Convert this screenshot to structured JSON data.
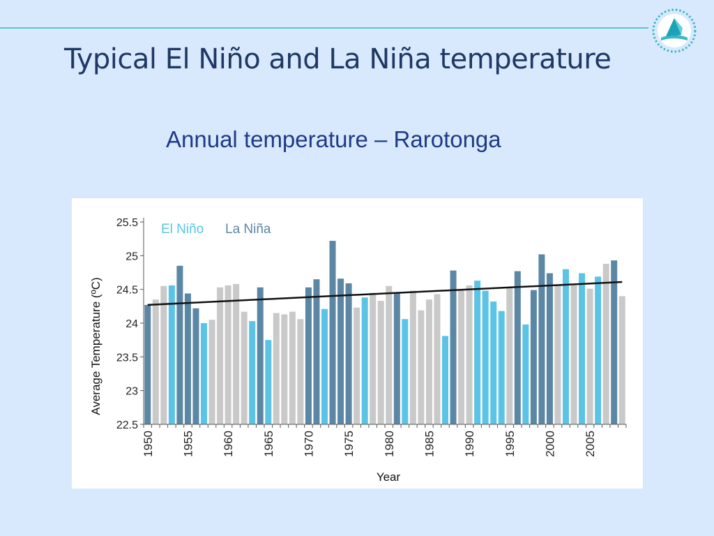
{
  "slide": {
    "title": "Typical El Niño and La Niña temperature",
    "subtitle": "Annual temperature – Rarotonga"
  },
  "logo": {
    "icon": "sail-boat-logo-icon"
  },
  "colors": {
    "background": "#d8e9fd",
    "title": "#1f3864",
    "subtitle": "#1f3a86",
    "el_nino": "#5bc4e6",
    "la_nina": "#5b87a5",
    "neutral": "#c9c9c9",
    "trend": "#111111",
    "accent_line": "#5ec4c9"
  },
  "chart_data": {
    "type": "bar",
    "title": "",
    "xlabel": "Year",
    "ylabel": "Average Temperature (ºC)",
    "ylim": [
      22.5,
      25.5
    ],
    "yticks": [
      "22.5",
      "23",
      "23.5",
      "24",
      "24.5",
      "25",
      "25.5"
    ],
    "xticks": [
      "1950",
      "1955",
      "1960",
      "1965",
      "1970",
      "1975",
      "1980",
      "1985",
      "1990",
      "1995",
      "2000",
      "2005"
    ],
    "legend": {
      "position": "top-left",
      "el_nino": "El Niño",
      "la_nina": "La Niña"
    },
    "categories": [
      1950,
      1951,
      1952,
      1953,
      1954,
      1955,
      1956,
      1957,
      1958,
      1959,
      1960,
      1961,
      1962,
      1963,
      1964,
      1965,
      1966,
      1967,
      1968,
      1969,
      1970,
      1971,
      1972,
      1973,
      1974,
      1975,
      1976,
      1977,
      1978,
      1979,
      1980,
      1981,
      1982,
      1983,
      1984,
      1985,
      1986,
      1987,
      1988,
      1989,
      1990,
      1991,
      1992,
      1993,
      1994,
      1995,
      1996,
      1997,
      1998,
      1999,
      2000,
      2001,
      2002,
      2003,
      2004,
      2005,
      2006,
      2007,
      2008,
      2009
    ],
    "values": [
      24.27,
      24.35,
      24.55,
      24.56,
      24.85,
      24.44,
      24.22,
      24.0,
      24.05,
      24.53,
      24.56,
      24.58,
      24.17,
      24.03,
      24.53,
      23.75,
      24.15,
      24.13,
      24.17,
      24.06,
      24.53,
      24.65,
      24.21,
      25.22,
      24.66,
      24.59,
      24.23,
      24.38,
      24.45,
      24.33,
      24.55,
      24.46,
      24.06,
      24.48,
      24.19,
      24.35,
      24.43,
      23.81,
      24.78,
      24.5,
      24.56,
      24.63,
      24.48,
      24.32,
      24.18,
      24.53,
      24.77,
      23.98,
      24.49,
      25.02,
      24.74,
      24.56,
      24.8,
      24.56,
      24.74,
      24.51,
      24.69,
      24.88,
      24.93,
      24.4
    ],
    "phase": [
      "nina",
      "neutral",
      "neutral",
      "nino",
      "nina",
      "nina",
      "nina",
      "nino",
      "neutral",
      "neutral",
      "neutral",
      "neutral",
      "neutral",
      "nino",
      "nina",
      "nino",
      "neutral",
      "neutral",
      "neutral",
      "neutral",
      "nina",
      "nina",
      "nino",
      "nina",
      "nina",
      "nina",
      "neutral",
      "nino",
      "neutral",
      "neutral",
      "neutral",
      "nina",
      "nino",
      "neutral",
      "neutral",
      "neutral",
      "neutral",
      "nino",
      "nina",
      "neutral",
      "neutral",
      "nino",
      "nino",
      "nino",
      "nino",
      "neutral",
      "nina",
      "nino",
      "nina",
      "nina",
      "nina",
      "neutral",
      "nino",
      "neutral",
      "nino",
      "neutral",
      "nino",
      "neutral",
      "nina",
      "neutral"
    ],
    "trend": {
      "label": "Linear trend",
      "start": [
        1950,
        24.27
      ],
      "end": [
        2009,
        24.61
      ]
    }
  }
}
